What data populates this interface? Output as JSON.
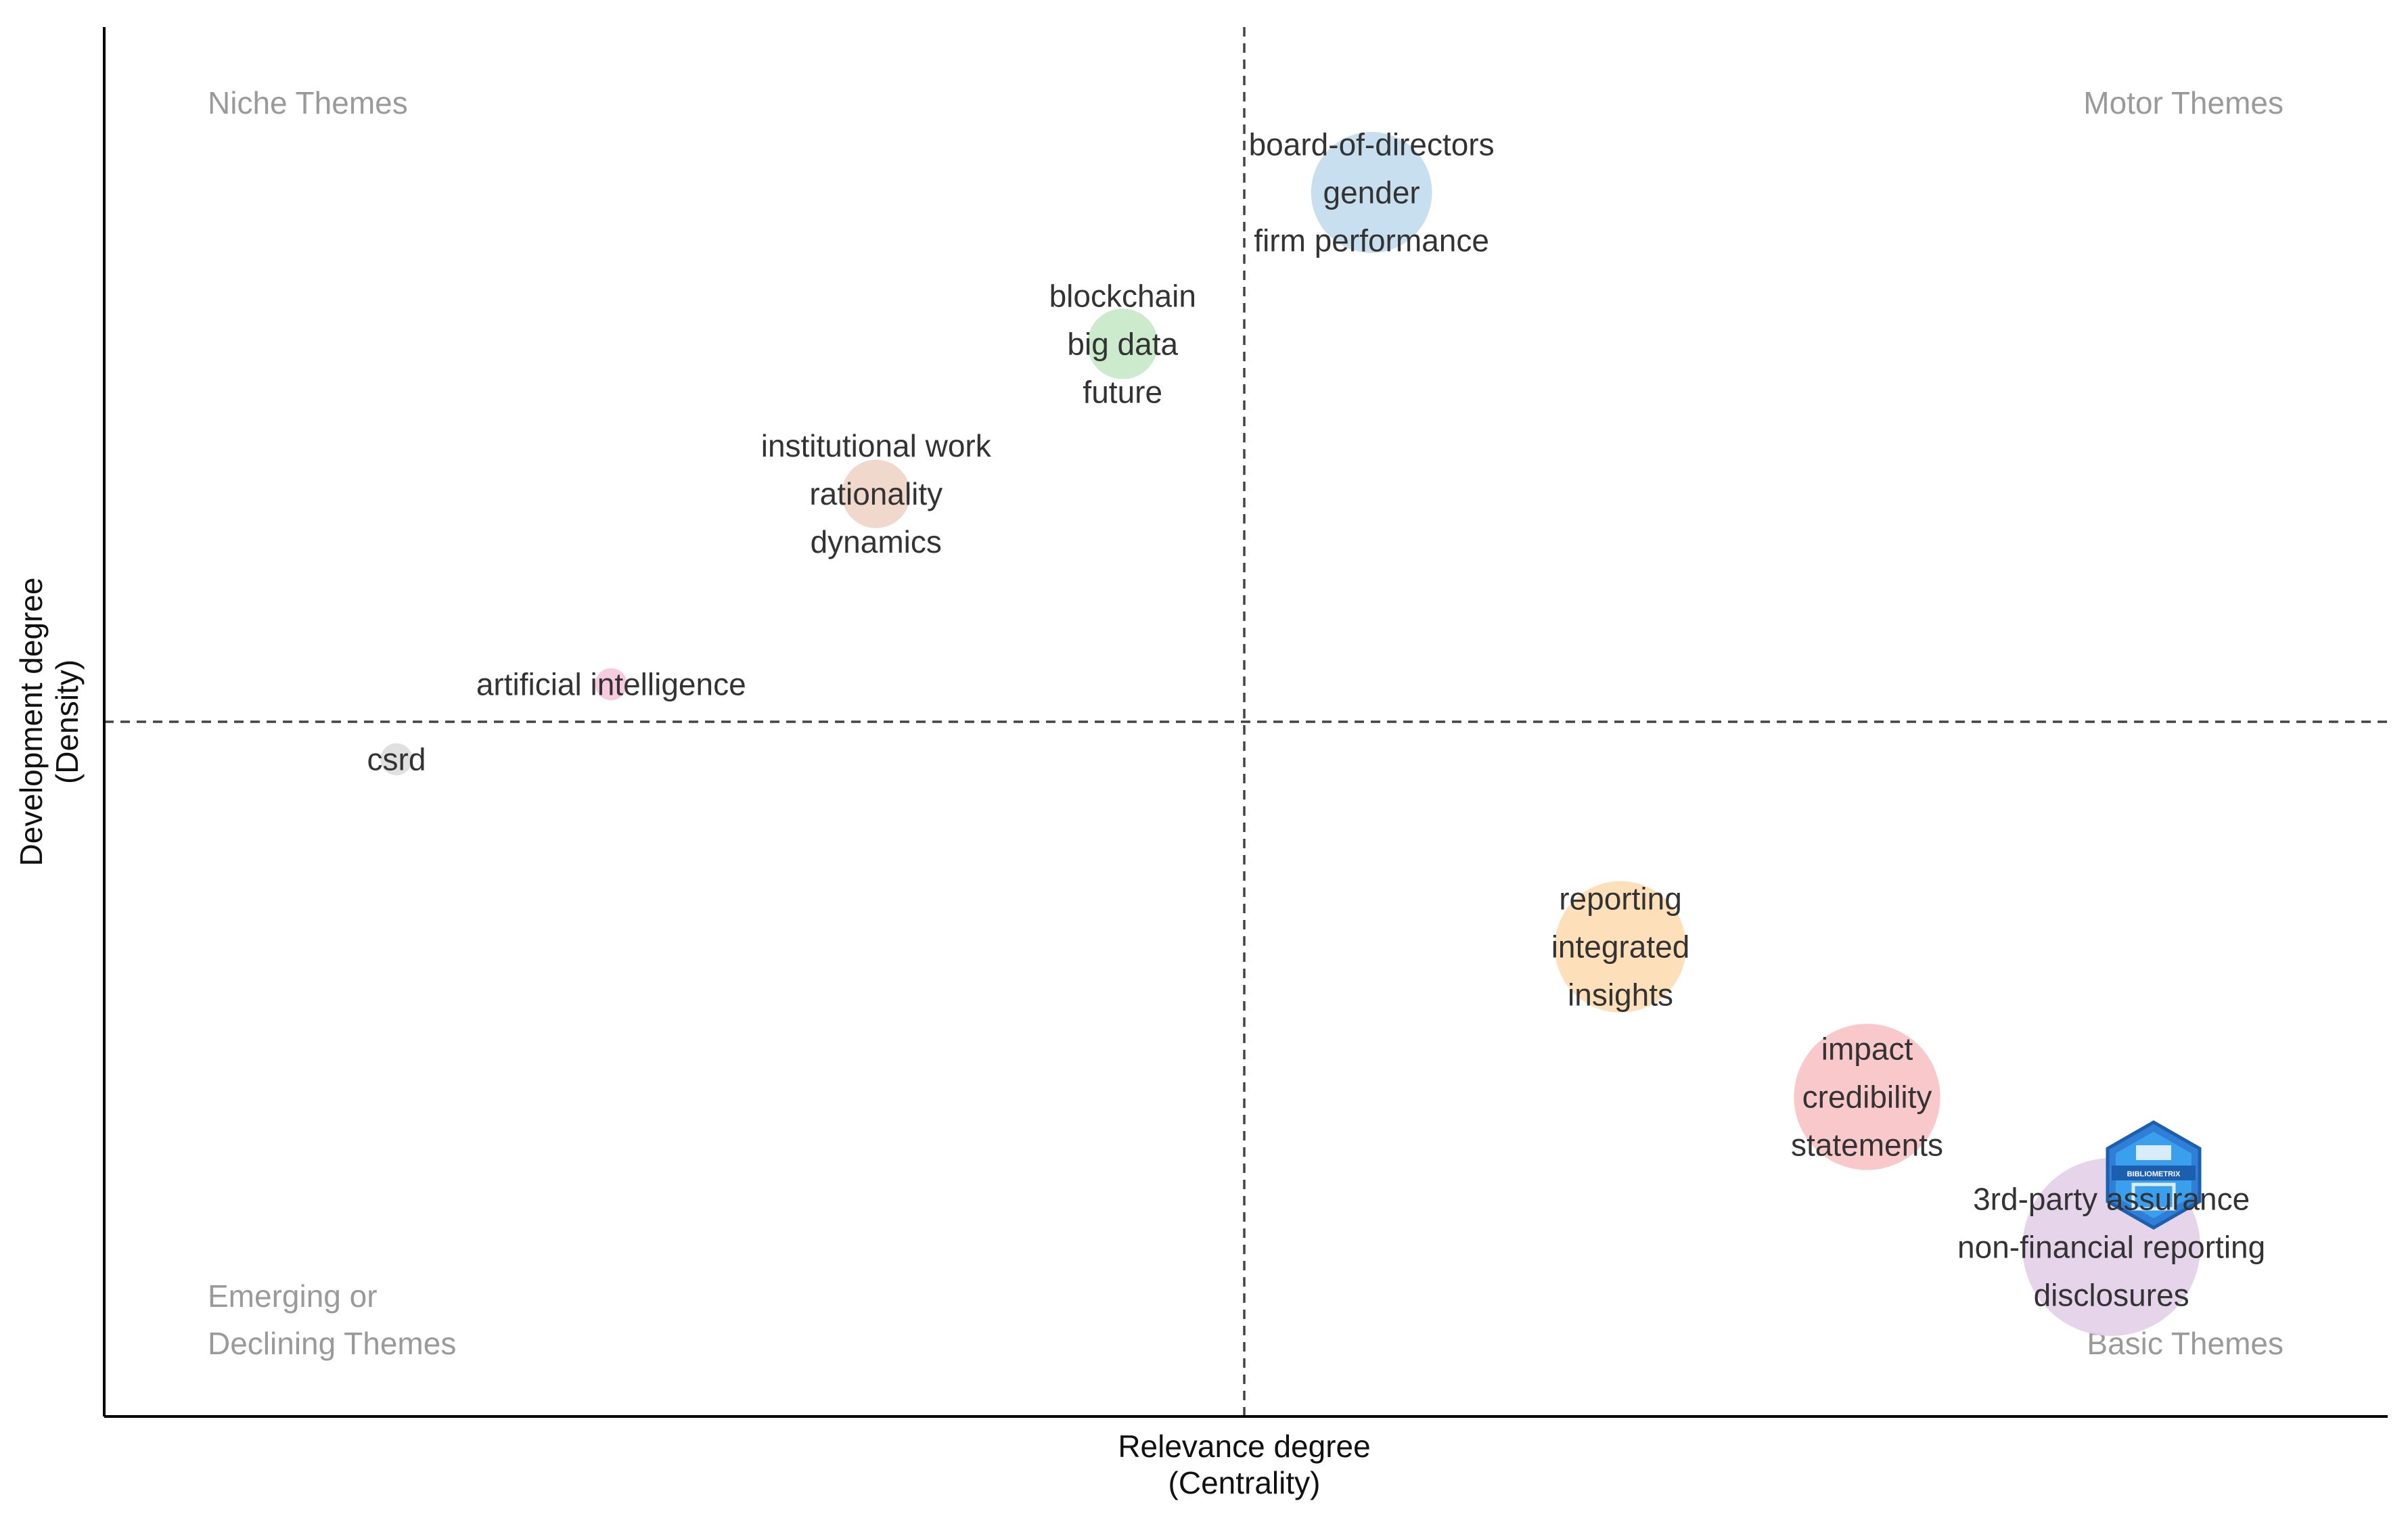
{
  "chart_data": {
    "type": "scatter",
    "title": "",
    "xlabel": "Relevance degree",
    "xlabel_sub": "(Centrality)",
    "ylabel": "Development degree",
    "ylabel_sub": "(Density)",
    "xlim": [
      0.0,
      1.0
    ],
    "ylim": [
      0.0,
      1.0
    ],
    "x_divider": 0.5,
    "y_divider": 0.5,
    "grid": false,
    "quadrant_labels": {
      "top_left": [
        "Niche Themes"
      ],
      "top_right": [
        "Motor Themes"
      ],
      "bottom_left": [
        "Emerging or",
        "Declining Themes"
      ],
      "bottom_right": [
        "Basic Themes"
      ]
    },
    "clusters": [
      {
        "name": "gender",
        "words": [
          "board-of-directors",
          "gender",
          "firm performance"
        ],
        "x": 0.555,
        "y": 0.881,
        "size": 5,
        "color": "#c3dcee"
      },
      {
        "name": "big data",
        "words": [
          "blockchain",
          "big data",
          "future"
        ],
        "x": 0.446,
        "y": 0.772,
        "size": 1.7,
        "color": "#c8e8c8"
      },
      {
        "name": "rationality",
        "words": [
          "institutional work",
          "rationality",
          "dynamics"
        ],
        "x": 0.338,
        "y": 0.664,
        "size": 1.6,
        "color": "#f0d5c8"
      },
      {
        "name": "artificial intelligence",
        "words": [
          "artificial intelligence"
        ],
        "x": 0.222,
        "y": 0.527,
        "size": 0.35,
        "color": "#f6c6dc"
      },
      {
        "name": "csrd",
        "words": [
          "csrd"
        ],
        "x": 0.128,
        "y": 0.473,
        "size": 0.35,
        "color": "#dddddd"
      },
      {
        "name": "integrated",
        "words": [
          "reporting",
          "integrated",
          "insights"
        ],
        "x": 0.664,
        "y": 0.338,
        "size": 5.9,
        "color": "#fddcb4"
      },
      {
        "name": "credibility",
        "words": [
          "impact",
          "credibility",
          "statements"
        ],
        "x": 0.772,
        "y": 0.23,
        "size": 7.3,
        "color": "#f8c3c6"
      },
      {
        "name": "non-financial reporting",
        "words": [
          "3rd-party assurance",
          "non-financial reporting",
          "disclosures"
        ],
        "x": 0.879,
        "y": 0.122,
        "size": 10.8,
        "color": "#e3d0e8"
      }
    ],
    "watermark": "BIBLIOMETRIX"
  }
}
